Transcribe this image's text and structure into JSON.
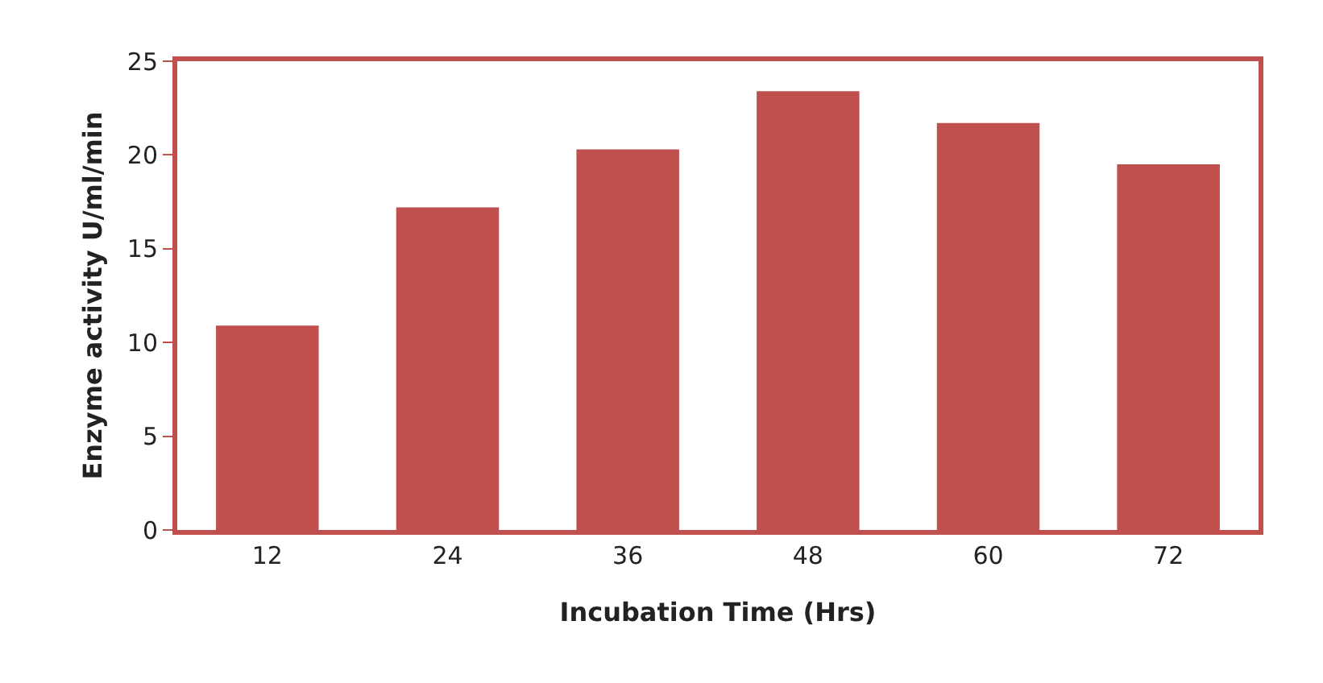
{
  "chart_data": {
    "type": "bar",
    "xlabel": "Incubation Time (Hrs)",
    "ylabel": "Enzyme activity U/ml/min",
    "categories": [
      "12",
      "24",
      "36",
      "48",
      "60",
      "72"
    ],
    "values": [
      10.9,
      17.2,
      20.3,
      23.4,
      21.7,
      19.5
    ],
    "color": "#c0504d",
    "ylim": [
      0,
      25
    ],
    "yticks": [
      0,
      5,
      10,
      15,
      20,
      25
    ]
  }
}
